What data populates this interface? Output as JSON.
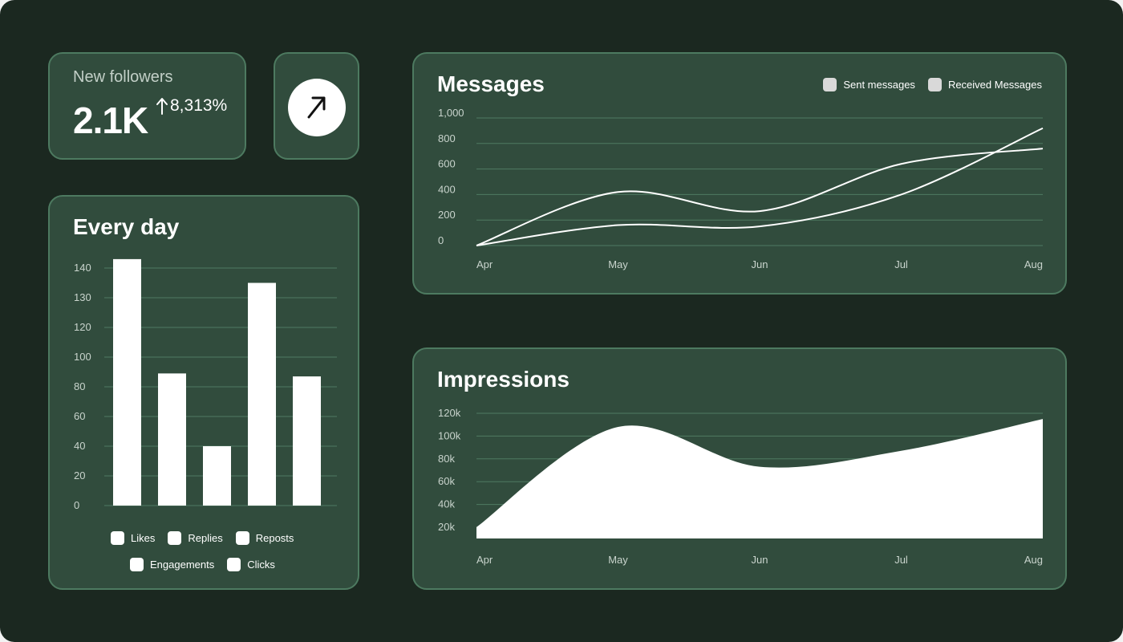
{
  "followers": {
    "label": "New followers",
    "value": "2.1K",
    "change": "8,313%",
    "change_icon": "arrow-up-icon"
  },
  "trend_button": {
    "icon": "arrow-up-right-icon"
  },
  "every_day": {
    "title": "Every day",
    "legend": [
      "Likes",
      "Replies",
      "Reposts",
      "Engagements",
      "Clicks"
    ]
  },
  "messages": {
    "title": "Messages",
    "legend": [
      "Sent messages",
      "Received Messages"
    ]
  },
  "impressions": {
    "title": "Impressions"
  },
  "colors": {
    "background": "#1b2820",
    "card": "#314c3d",
    "card_border": "#4d7a60",
    "mark": "#ffffff",
    "legend_grey": "#d9d9d9"
  },
  "chart_data": [
    {
      "id": "every_day",
      "type": "bar",
      "categories": [
        "Likes",
        "Replies",
        "Reposts",
        "Engagements",
        "Clicks"
      ],
      "values": [
        143,
        89,
        40,
        135,
        87
      ],
      "yticks": [
        "0",
        "20",
        "40",
        "60",
        "80",
        "100",
        "120",
        "130",
        "140"
      ],
      "grid": true
    },
    {
      "id": "messages",
      "type": "line",
      "x": [
        "Apr",
        "May",
        "Jun",
        "Jul",
        "Aug"
      ],
      "yticks": [
        "0",
        "200",
        "400",
        "600",
        "800",
        "1,000"
      ],
      "ylim": [
        0,
        1000
      ],
      "series": [
        {
          "name": "Sent messages",
          "values": [
            0,
            420,
            270,
            640,
            760
          ]
        },
        {
          "name": "Received Messages",
          "values": [
            0,
            160,
            150,
            400,
            920
          ]
        }
      ],
      "grid": true
    },
    {
      "id": "impressions",
      "type": "area",
      "x": [
        "Apr",
        "May",
        "Jun",
        "Jul",
        "Aug"
      ],
      "yticks": [
        "20k",
        "40k",
        "60k",
        "80k",
        "100k",
        "120k"
      ],
      "ylim": [
        10000,
        120000
      ],
      "values": [
        20000,
        108000,
        73000,
        87000,
        115000
      ],
      "grid": true
    }
  ]
}
